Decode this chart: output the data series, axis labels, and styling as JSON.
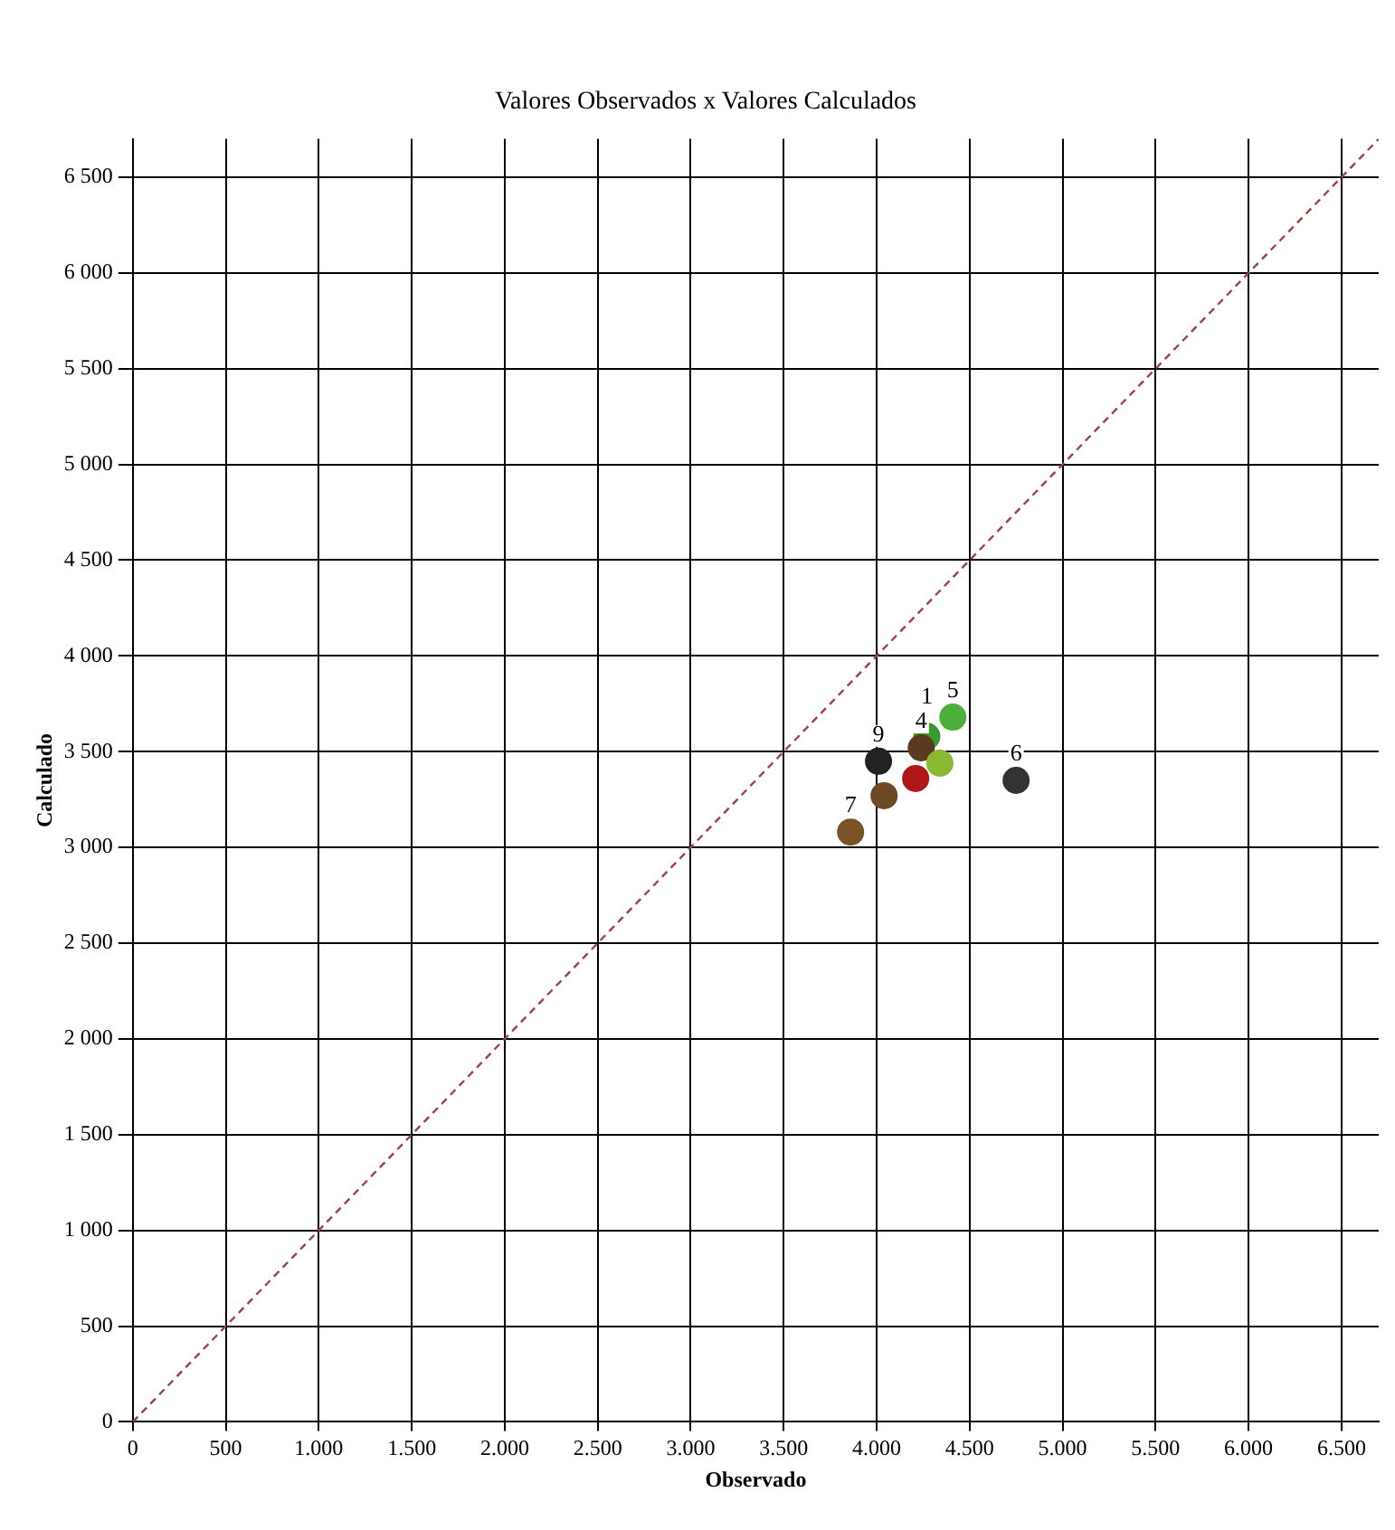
{
  "chart_data": {
    "type": "scatter",
    "title": "Valores Observados x Valores Calculados",
    "xlabel": "Observado",
    "ylabel": "Calculado",
    "xlim": [
      0,
      6700
    ],
    "ylim": [
      0,
      6700
    ],
    "xticks": [
      0,
      500,
      {
        "value": 1000,
        "label": "1.000"
      },
      {
        "value": 1500,
        "label": "1.500"
      },
      {
        "value": 2000,
        "label": "2.000"
      },
      {
        "value": 2500,
        "label": "2.500"
      },
      {
        "value": 3000,
        "label": "3.000"
      },
      {
        "value": 3500,
        "label": "3.500"
      },
      {
        "value": 4000,
        "label": "4.000"
      },
      {
        "value": 4500,
        "label": "4.500"
      },
      {
        "value": 5000,
        "label": "5.000"
      },
      {
        "value": 5500,
        "label": "5.500"
      },
      {
        "value": 6000,
        "label": "6.000"
      },
      {
        "value": 6500,
        "label": "6.500"
      }
    ],
    "yticks": [
      0,
      500,
      {
        "value": 1000,
        "label": "1 000"
      },
      {
        "value": 1500,
        "label": "1 500"
      },
      {
        "value": 2000,
        "label": "2 000"
      },
      {
        "value": 2500,
        "label": "2 500"
      },
      {
        "value": 3000,
        "label": "3 000"
      },
      {
        "value": 3500,
        "label": "3 500"
      },
      {
        "value": 4000,
        "label": "4 000"
      },
      {
        "value": 4500,
        "label": "4 500"
      },
      {
        "value": 5000,
        "label": "5 000"
      },
      {
        "value": 5500,
        "label": "5 500"
      },
      {
        "value": 6000,
        "label": "6 000"
      },
      {
        "value": 6500,
        "label": "6 500"
      }
    ],
    "grid": true,
    "marker": "circle",
    "annotations": [
      {
        "text": "5",
        "x": 4410,
        "y": 3680
      },
      {
        "text": "1",
        "x": 4270,
        "y": 3580
      },
      {
        "text": "4",
        "x": 4240,
        "y": 3520
      },
      {
        "text": "9",
        "x": 4010,
        "y": 3450
      },
      {
        "text": "7",
        "x": 3860,
        "y": 3080
      },
      {
        "text": "6",
        "x": 4750,
        "y": 3350
      }
    ],
    "series": [
      {
        "type": "scatter",
        "x": [
          4410,
          4270,
          4240,
          4340,
          4010,
          4040,
          4210,
          3860,
          4750
        ],
        "values": [
          3680,
          3580,
          3520,
          3440,
          3450,
          3270,
          3360,
          3080,
          3350
        ],
        "colors": [
          "#4caf3a",
          "#3a9a30",
          "#5a3a20",
          "#8ab832",
          "#222222",
          "#6b4a25",
          "#b01818",
          "#7a5228",
          "#333333"
        ]
      },
      {
        "type": "line",
        "x": [
          0,
          6700
        ],
        "values": [
          0,
          6700
        ],
        "color": "#a0404a",
        "line_style": "dashed",
        "marker": "none"
      }
    ]
  }
}
